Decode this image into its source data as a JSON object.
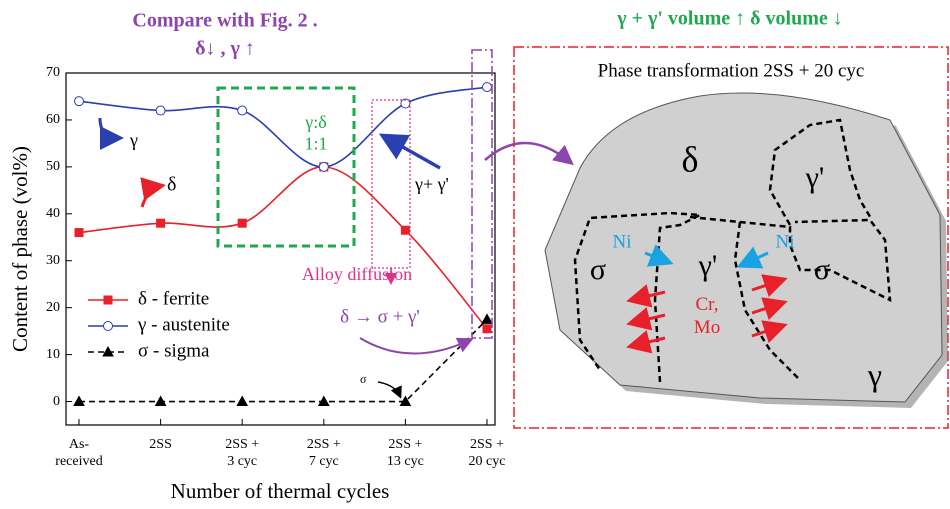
{
  "chart_data": {
    "type": "line",
    "title": "Compare with Fig. 2 .",
    "subtitle": "δ↓ , γ ↑",
    "x_label": "Number of thermal cycles",
    "y_label": "Content of phase (vol%)",
    "categories": [
      "As-\nreceived",
      "2SS",
      "2SS +\n3 cyc",
      "2SS +\n7 cyc",
      "2SS +\n13 cyc",
      "2SS +\n20 cyc"
    ],
    "series": [
      {
        "name": "δ - ferrite",
        "color": "#e8202a",
        "marker": "square",
        "values": [
          36,
          38,
          38,
          50,
          36.5,
          15.5
        ]
      },
      {
        "name": "γ - austenite",
        "color": "#2a3fb0",
        "marker": "circle",
        "values": [
          64,
          62,
          62,
          50,
          63.5,
          67
        ]
      },
      {
        "name": "σ - sigma",
        "color": "#000000",
        "marker": "triangle",
        "dashed": true,
        "values": [
          0,
          0,
          0,
          0,
          0,
          17.5
        ]
      }
    ],
    "ylim": [
      -5,
      70
    ],
    "yticks": [
      0,
      10,
      20,
      30,
      40,
      50,
      60,
      70
    ],
    "annotations": [
      "γ",
      "δ",
      "γ:δ\n1:1",
      "γ+ γ'",
      "Alloy diffusion",
      "δ → σ + γ'",
      "σ"
    ]
  },
  "diagram": {
    "header": "γ + γ' volume ↑ δ volume ↓",
    "title": "Phase transformation 2SS + 20 cyc",
    "labels": [
      "δ",
      "γ'",
      "σ",
      "γ'",
      "σ",
      "γ",
      "Ni",
      "Ni",
      "Cr,\nMo"
    ]
  }
}
